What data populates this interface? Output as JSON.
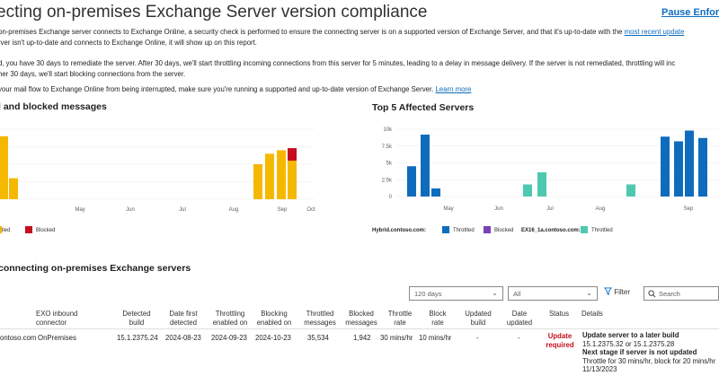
{
  "header": {
    "title": "ecting on-premises Exchange Server version compliance",
    "pause_link": "Pause Enforce"
  },
  "intro": {
    "line1_prefix": " on-premises Exchange server connects to Exchange Online, a security check is performed to ensure the connecting server is on a supported version of Exchange Server, and that it's up-to-date with the ",
    "line1_link": "most recent update",
    "line2": "rver isn't up-to-date and connects to Exchange Online, it will show up on this report.",
    "line3": "d, you have 30 days to remediate the server. After 30 days, we'll start throttling incoming connections from this server for 5 minutes, leading to a delay in message delivery. If the server is  not remediated, throttling will inc",
    "line4": "her 30 days, we'll start blocking connections from the server.",
    "line5_prefix": " your mail flow to Exchange Online from being interrupted, make sure you're running a supported and up-to-date version of Exchange Server. ",
    "line5_link": "Learn more"
  },
  "left_chart_section": {
    "heading": "l and blocked messages"
  },
  "right_chart_section": {
    "heading": "Top 5 Affected Servers"
  },
  "chart_data": [
    {
      "type": "bar",
      "title": "l and blocked messages",
      "x_tick_labels": [
        "May",
        "Jun",
        "Jul",
        "Aug",
        "Sep",
        "Oct"
      ],
      "series": [
        {
          "name": "ttled",
          "color": "#f5b800",
          "values": [
            0.9,
            0.3,
            0.0,
            0.0,
            0.0,
            0.0,
            0.0,
            0.0,
            0.0,
            0.0,
            0.5,
            0.65,
            0.7,
            0.55
          ]
        },
        {
          "name": "Blocked",
          "color": "#c50f1f",
          "values": [
            0,
            0,
            0,
            0,
            0,
            0,
            0,
            0,
            0,
            0,
            0,
            0,
            0,
            0.18
          ]
        }
      ],
      "legend": [
        "ttled",
        "Blocked"
      ]
    },
    {
      "type": "bar",
      "title": "Top 5 Affected Servers",
      "y_tick_labels": [
        "10k",
        "7.5k",
        "5k",
        "2.5k",
        "0"
      ],
      "ylim": [
        0,
        10000
      ],
      "x_tick_labels": [
        "May",
        "Jun",
        "Jul",
        "Aug",
        "Sep"
      ],
      "series": [
        {
          "name": "Hybrid.contoso.com Throttled",
          "color": "#0f6cbd",
          "values": [
            4500,
            9200,
            1200,
            0,
            0,
            0,
            0,
            0,
            0,
            0,
            8900,
            8200,
            9800,
            8700
          ]
        },
        {
          "name": "EX16_1a.contoso.com Throttled",
          "color": "#4ec9b0",
          "values": [
            0,
            0,
            0,
            1800,
            3600,
            0,
            0,
            1800,
            0,
            0,
            0,
            0,
            0,
            0
          ]
        }
      ],
      "legend": [
        {
          "server": "Hybrid.contoso.com:",
          "items": [
            "Throttled",
            "Blocked"
          ]
        },
        {
          "server": "EX16_1a.contoso.com:",
          "items": [
            "Throttled"
          ]
        }
      ]
    }
  ],
  "servers_section": {
    "heading": "connecting on-premises Exchange servers"
  },
  "filters": {
    "date_range": "120 days",
    "scope": "All",
    "filter_label": "Filter",
    "search_placeholder": "Search"
  },
  "table": {
    "headers": [
      "EXO inbound connector",
      "Detected build",
      "Date first detected",
      "Throttling enabled on",
      "Blocking enabled on",
      "Throttled messages",
      "Blocked messages",
      "Throttle rate",
      "Block rate",
      "Updated build",
      "Date updated",
      "Status",
      "Details"
    ],
    "row": {
      "server": "ontoso.com",
      "connector": "OnPremises",
      "detected_build": "15.1.2375.24",
      "date_first_detected": "2024-08-23",
      "throttling_enabled_on": "2024-09-23",
      "blocking_enabled_on": "2024-10-23",
      "throttled_messages": "35,534",
      "blocked_messages": "1,942",
      "throttle_rate": "30 mins/hr",
      "block_rate": "10 mins/hr",
      "updated_build": "-",
      "date_updated": "-",
      "status": "Update required",
      "details_title": "Update server to a later build",
      "details_builds": "15.1.2375.32 or 15.1.2375.28",
      "details_next": "Next stage if server is not updated",
      "details_throttle": "Throttle for 30 mins/hr, block for 20 mins/hr",
      "details_date": "11/13/2023"
    }
  }
}
